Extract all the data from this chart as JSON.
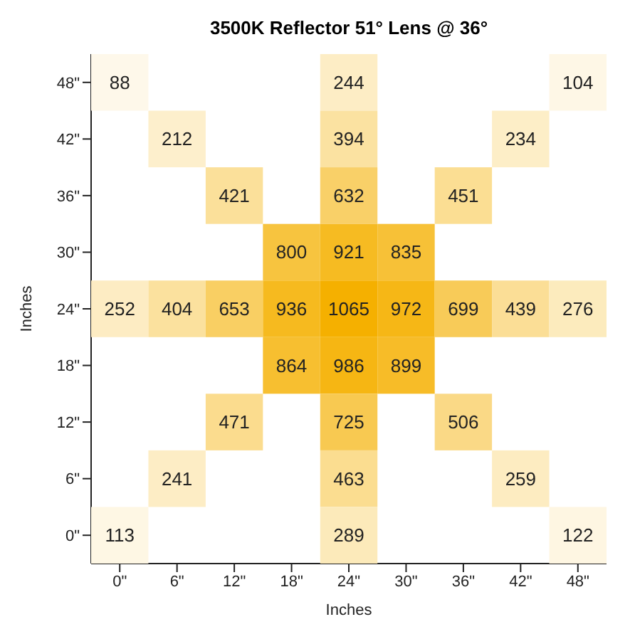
{
  "chart_data": {
    "type": "heatmap",
    "data_labels": true,
    "title": "3500K Reflector 51° Lens @ 36°",
    "xlabel": "Inches",
    "ylabel": "Inches",
    "categories": [
      "0\"",
      "6\"",
      "12\"",
      "18\"",
      "24\"",
      "30\"",
      "36\"",
      "42\"",
      "48\""
    ],
    "y_categories": [
      "48\"",
      "42\"",
      "36\"",
      "30\"",
      "24\"",
      "18\"",
      "12\"",
      "6\"",
      "0\""
    ],
    "cells": [
      [
        88,
        null,
        null,
        null,
        244,
        null,
        null,
        null,
        104
      ],
      [
        null,
        212,
        null,
        null,
        394,
        null,
        null,
        234,
        null
      ],
      [
        null,
        null,
        421,
        null,
        632,
        null,
        451,
        null,
        null
      ],
      [
        null,
        null,
        null,
        800,
        921,
        835,
        null,
        null,
        null
      ],
      [
        252,
        404,
        653,
        936,
        1065,
        972,
        699,
        439,
        276
      ],
      [
        null,
        null,
        null,
        864,
        986,
        899,
        null,
        null,
        null
      ],
      [
        null,
        null,
        471,
        null,
        725,
        null,
        506,
        null,
        null
      ],
      [
        null,
        241,
        null,
        null,
        463,
        null,
        null,
        259,
        null
      ],
      [
        113,
        null,
        null,
        null,
        289,
        null,
        null,
        null,
        122
      ]
    ]
  }
}
